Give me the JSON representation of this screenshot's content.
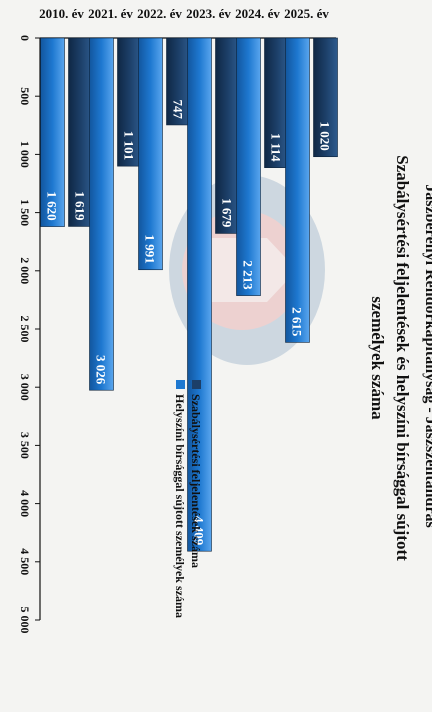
{
  "header": "Jászberényi Rendőrkapitányság - Jászszentandrás",
  "chart_data": {
    "type": "bar",
    "orientation": "horizontal",
    "title": "Szabálysértési feljelentések és helyszíni bírsággal sújtott személyek száma",
    "categories": [
      "2010. év",
      "2021. év",
      "2022. év",
      "2023. év",
      "2024. év",
      "2025. év"
    ],
    "series": [
      {
        "name": "Szabálysértési feljelentések száma",
        "values": [
          1619,
          1101,
          747,
          1679,
          1114,
          1020
        ],
        "labels": [
          "1 619",
          "1 101",
          "747",
          "1 679",
          "1 114",
          "1 020"
        ],
        "color": "#1c3f68"
      },
      {
        "name": "Helyszíni bírsággal sújtott személyek száma",
        "values": [
          1620,
          3026,
          1991,
          4409,
          2213,
          2615
        ],
        "labels": [
          "1 620",
          "3 026",
          "1 991",
          "4 409",
          "2 213",
          "2 615"
        ],
        "color": "#1e78d0"
      }
    ],
    "value_axis": {
      "min": 0,
      "max": 5000,
      "step": 500,
      "tick_labels": [
        "0",
        "500",
        "1 000",
        "1 500",
        "2 000",
        "2 500",
        "3 000",
        "3 500",
        "4 000",
        "4 500",
        "5 000"
      ]
    },
    "legend_position": "top-right",
    "grid": false
  }
}
